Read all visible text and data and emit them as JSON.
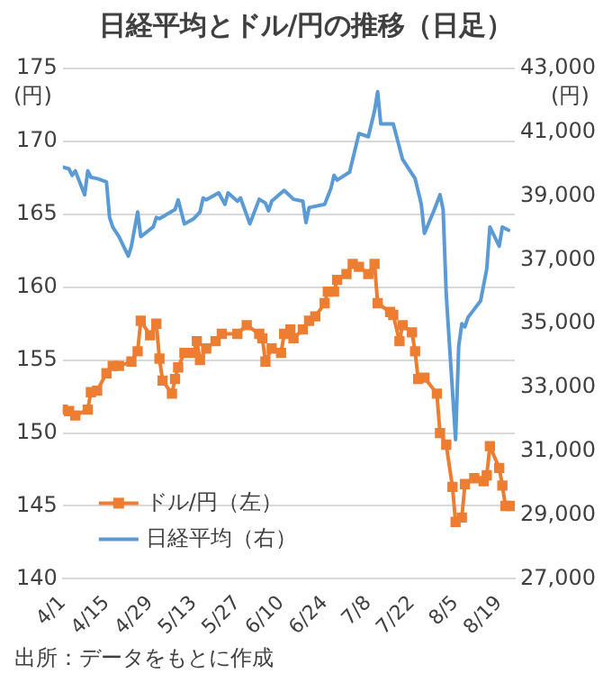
{
  "chart_data": {
    "type": "line",
    "title": "日経平均とドル/円の推移（日足）",
    "ylabel": "(円)",
    "y2label": "(円)",
    "xlim": [
      "--04-01",
      "--08-24"
    ],
    "xticks": [
      {
        "value": "--04-01",
        "label": "4/1"
      },
      {
        "value": "--04-15",
        "label": "4/15"
      },
      {
        "value": "--04-29",
        "label": "4/29"
      },
      {
        "value": "--05-13",
        "label": "5/13"
      },
      {
        "value": "--05-27",
        "label": "5/27"
      },
      {
        "value": "--06-10",
        "label": "6/10"
      },
      {
        "value": "--06-24",
        "label": "6/24"
      },
      {
        "value": "--07-08",
        "label": "7/8"
      },
      {
        "value": "--07-22",
        "label": "7/22"
      },
      {
        "value": "--08-05",
        "label": "8/5"
      },
      {
        "value": "--08-19",
        "label": "8/19"
      }
    ],
    "ylim": [
      140,
      175
    ],
    "yticks": [
      140,
      145,
      150,
      155,
      160,
      165,
      170,
      175
    ],
    "y2lim": [
      27000,
      43000
    ],
    "y2ticks": [
      {
        "value": 27000,
        "label": "27,000"
      },
      {
        "value": 29000,
        "label": "29,000"
      },
      {
        "value": 31000,
        "label": "31,000"
      },
      {
        "value": 33000,
        "label": "33,000"
      },
      {
        "value": 35000,
        "label": "35,000"
      },
      {
        "value": 37000,
        "label": "37,000"
      },
      {
        "value": 39000,
        "label": "39,000"
      },
      {
        "value": 41000,
        "label": "41,000"
      },
      {
        "value": 43000,
        "label": "43,000"
      }
    ],
    "grid": "y",
    "legend": "bottom left",
    "series": [
      {
        "name": "ドル/円（左）",
        "color": "#ed7d31",
        "marker": "square",
        "x": [
          "--04-01",
          "--04-03",
          "--04-05",
          "--04-09",
          "--04-10",
          "--04-12",
          "--04-15",
          "--04-17",
          "--04-19",
          "--04-23",
          "--04-25",
          "--04-26",
          "--04-29",
          "--05-01",
          "--05-02",
          "--05-03",
          "--05-06",
          "--05-07",
          "--05-08",
          "--05-10",
          "--05-13",
          "--05-14",
          "--05-15",
          "--05-17",
          "--05-20",
          "--05-22",
          "--05-27",
          "--05-30",
          "--06-03",
          "--06-04",
          "--06-05",
          "--06-07",
          "--06-10",
          "--06-11",
          "--06-13",
          "--06-14",
          "--06-17",
          "--06-19",
          "--06-21",
          "--06-24",
          "--06-25",
          "--06-27",
          "--06-28",
          "--07-01",
          "--07-03",
          "--07-05",
          "--07-08",
          "--07-10",
          "--07-11",
          "--07-15",
          "--07-16",
          "--07-18",
          "--07-19",
          "--07-22",
          "--07-23",
          "--07-24",
          "--07-26",
          "--07-30",
          "--07-31",
          "--08-02",
          "--08-04",
          "--08-05",
          "--08-07",
          "--08-08",
          "--08-11",
          "--08-14",
          "--08-15",
          "--08-16",
          "--08-19",
          "--08-20",
          "--08-21",
          "--08-23"
        ],
        "values": [
          151.6,
          151.5,
          151.2,
          151.6,
          152.8,
          152.9,
          154.1,
          154.6,
          154.6,
          154.9,
          155.6,
          157.7,
          156.7,
          157.5,
          155.1,
          153.6,
          152.7,
          153.7,
          154.5,
          155.5,
          155.5,
          156.3,
          155.0,
          155.8,
          156.3,
          156.8,
          156.8,
          157.4,
          156.8,
          156.5,
          154.9,
          155.8,
          155.5,
          156.8,
          157.1,
          156.5,
          157.1,
          157.7,
          158.0,
          158.9,
          159.7,
          159.7,
          160.5,
          160.9,
          161.6,
          161.4,
          160.9,
          161.6,
          158.9,
          158.3,
          158.1,
          156.3,
          157.4,
          156.9,
          155.6,
          153.7,
          153.8,
          152.7,
          150.0,
          149.2,
          146.3,
          143.9,
          144.2,
          146.5,
          146.9,
          146.7,
          147.1,
          149.1,
          147.6,
          146.4,
          145.0,
          145.0
        ]
      },
      {
        "name": "日経平均（右）",
        "color": "#5b9bd5",
        "axis": "y2",
        "x": [
          "--04-01",
          "--04-03",
          "--04-04",
          "--04-05",
          "--04-08",
          "--04-09",
          "--04-10",
          "--04-12",
          "--04-15",
          "--04-16",
          "--04-17",
          "--04-19",
          "--04-22",
          "--04-23",
          "--04-25",
          "--04-26",
          "--04-30",
          "--05-01",
          "--05-02",
          "--05-07",
          "--05-08",
          "--05-10",
          "--05-13",
          "--05-15",
          "--05-16",
          "--05-17",
          "--05-21",
          "--05-23",
          "--05-24",
          "--05-27",
          "--05-28",
          "--05-31",
          "--06-03",
          "--06-05",
          "--06-06",
          "--06-07",
          "--06-11",
          "--06-14",
          "--06-17",
          "--06-18",
          "--06-19",
          "--06-24",
          "--06-26",
          "--06-27",
          "--06-28",
          "--07-02",
          "--07-04",
          "--07-05",
          "--07-08",
          "--07-10",
          "--07-11",
          "--07-12",
          "--07-16",
          "--07-19",
          "--07-23",
          "--07-25",
          "--07-26",
          "--07-29",
          "--07-31",
          "--08-01",
          "--08-02",
          "--08-05",
          "--08-06",
          "--08-07",
          "--08-08",
          "--08-09",
          "--08-13",
          "--08-14",
          "--08-15",
          "--08-16",
          "--08-19",
          "--08-20",
          "--08-22"
        ],
        "values": [
          39910,
          39850,
          39650,
          39790,
          39040,
          39790,
          39590,
          39550,
          39445,
          38330,
          38030,
          37730,
          37120,
          37430,
          38500,
          37730,
          38030,
          38330,
          38290,
          38580,
          38880,
          38130,
          38290,
          38500,
          38940,
          38880,
          39100,
          38740,
          39100,
          38840,
          38940,
          38130,
          38900,
          38780,
          38540,
          38840,
          39180,
          38900,
          38840,
          38170,
          38640,
          38740,
          39240,
          39650,
          39500,
          39750,
          40560,
          40960,
          40860,
          41670,
          42270,
          41260,
          41260,
          40150,
          39550,
          38740,
          37830,
          38530,
          39040,
          38580,
          35910,
          31365,
          34290,
          35000,
          34900,
          35200,
          35710,
          36210,
          36720,
          38030,
          37430,
          38030,
          37930
        ]
      }
    ],
    "annotations": [
      "出所：データをもとに作成"
    ]
  }
}
